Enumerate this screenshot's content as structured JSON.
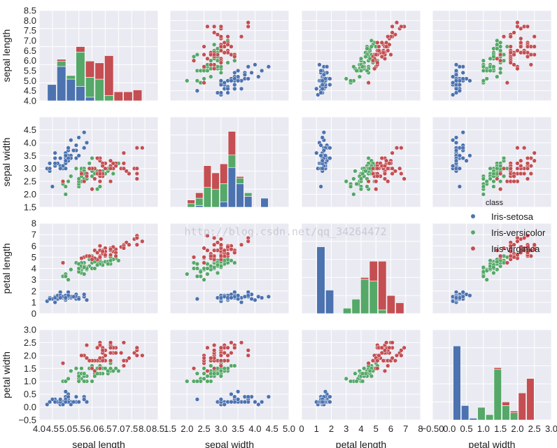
{
  "chart_data": {
    "type": "scatter",
    "layout": "pairplot",
    "variables": [
      "sepal length",
      "sepal width",
      "petal length",
      "petal width"
    ],
    "axis_labels": [
      "sepal length",
      "sepal width",
      "petal length",
      "petal width"
    ],
    "colors": {
      "Iris-setosa": "#4c72b0",
      "Iris-versicolor": "#55a868",
      "Iris-virginica": "#c44e52"
    },
    "background": "#eaeaf2",
    "grid": true,
    "legend": {
      "title": "class",
      "placement": "right",
      "entries": [
        "Iris-setosa",
        "Iris-versicolor",
        "Iris-virginica"
      ]
    },
    "watermark": "http://blog.csdn.net/qq_34264472",
    "axes": [
      {
        "lim": [
          4.0,
          8.5
        ],
        "ticks": [
          4.0,
          4.5,
          5.0,
          5.5,
          6.0,
          6.5,
          7.0,
          7.5,
          8.0,
          8.5
        ],
        "tick_labels": [
          "4.0",
          "4.5",
          "5.0",
          "5.5",
          "6.0",
          "6.5",
          "7.0",
          "7.5",
          "8.0",
          "8.5"
        ]
      },
      {
        "lim": [
          1.5,
          5.0
        ],
        "ticks": [
          1.5,
          2.0,
          2.5,
          3.0,
          3.5,
          4.0,
          4.5,
          5.0
        ],
        "tick_labels": [
          "1.5",
          "2.0",
          "2.5",
          "3.0",
          "3.5",
          "4.0",
          "4.5",
          "5.0"
        ]
      },
      {
        "lim": [
          0,
          8
        ],
        "ticks": [
          0,
          1,
          2,
          3,
          4,
          5,
          6,
          7,
          8
        ],
        "tick_labels": [
          "0",
          "1",
          "2",
          "3",
          "4",
          "5",
          "6",
          "7",
          "8"
        ]
      },
      {
        "lim": [
          -0.5,
          3.0
        ],
        "ticks": [
          -0.5,
          0.0,
          0.5,
          1.0,
          1.5,
          2.0,
          2.5,
          3.0
        ],
        "tick_labels": [
          "−0.5",
          "0.0",
          "0.5",
          "1.0",
          "1.5",
          "2.0",
          "2.5",
          "3.0"
        ]
      }
    ],
    "bottom_tick_labels": [
      [
        "4.0",
        "4.5",
        "5.0",
        "5.5",
        "6.0",
        "6.5",
        "7.0",
        "7.5",
        "8.0",
        "8.5"
      ],
      [
        "1.5",
        "2.0",
        "2.5",
        "3.0",
        "3.5",
        "4.0",
        "4.5",
        "5.0"
      ],
      [
        "0",
        "1",
        "2",
        "3",
        "4",
        "5",
        "6",
        "7",
        "8"
      ],
      [
        "−0.50",
        "0.0",
        "0.5",
        "1.0",
        "1.5",
        "2.0",
        "2.5",
        "3.0"
      ]
    ],
    "left_tick_labels": [
      [
        "4.0",
        "4.5",
        "5.0",
        "5.5",
        "6.0",
        "6.5",
        "7.0",
        "7.5",
        "8.0",
        "8.5"
      ],
      [
        "1.5",
        "2.0",
        "2.5",
        "3.0",
        "3.5",
        "4.0",
        "4.5"
      ],
      [
        "0",
        "1",
        "2",
        "3",
        "4",
        "5",
        "6",
        "7",
        "8"
      ],
      [
        "−0.5",
        "0.0",
        "0.5",
        "1.0",
        "1.5",
        "2.0",
        "2.5",
        "3.0"
      ]
    ],
    "hist_ylim": [
      0,
      50
    ],
    "histograms": [
      {
        "bins": [
          4.3,
          4.66,
          5.02,
          5.38,
          5.74,
          6.1,
          6.46,
          6.82,
          7.18,
          7.54,
          7.9
        ],
        "counts": {
          "Iris-setosa": [
            9,
            19,
            12,
            8,
            2,
            0,
            0,
            0,
            0,
            0
          ],
          "Iris-versicolor": [
            0,
            3,
            2,
            19,
            11,
            12,
            3,
            0,
            0,
            0
          ],
          "Iris-virginica": [
            0,
            1,
            0,
            3,
            9,
            9,
            22,
            5,
            5,
            6
          ]
        }
      },
      {
        "bins": [
          2.0,
          2.24,
          2.48,
          2.72,
          2.96,
          3.2,
          3.44,
          3.68,
          3.92,
          4.16,
          4.4
        ],
        "counts": {
          "Iris-setosa": [
            0,
            1,
            0,
            0,
            3,
            22,
            13,
            6,
            0,
            5
          ],
          "Iris-versicolor": [
            2,
            4,
            11,
            10,
            10,
            7,
            3,
            2,
            0,
            0
          ],
          "Iris-virginica": [
            2,
            3,
            12,
            9,
            11,
            13,
            1,
            0,
            0,
            0
          ]
        }
      },
      {
        "bins": [
          1.0,
          1.59,
          2.18,
          2.77,
          3.36,
          3.95,
          4.54,
          5.13,
          5.72,
          6.31,
          6.9
        ],
        "counts": {
          "Iris-setosa": [
            37,
            13,
            0,
            0,
            0,
            0,
            0,
            0,
            0,
            0
          ],
          "Iris-versicolor": [
            0,
            0,
            0,
            3,
            8,
            19,
            18,
            2,
            0,
            0
          ],
          "Iris-virginica": [
            0,
            0,
            0,
            0,
            0,
            1,
            11,
            27,
            10,
            6
          ]
        }
      },
      {
        "bins": [
          0.1,
          0.34,
          0.58,
          0.82,
          1.06,
          1.3,
          1.54,
          1.78,
          2.02,
          2.26,
          2.5
        ],
        "counts": {
          "Iris-setosa": [
            41,
            8,
            1,
            0,
            0,
            0,
            0,
            0,
            0,
            0
          ],
          "Iris-versicolor": [
            0,
            0,
            0,
            7,
            3,
            28,
            8,
            4,
            0,
            0
          ],
          "Iris-virginica": [
            0,
            0,
            0,
            0,
            0,
            1,
            2,
            1,
            15,
            23
          ]
        }
      }
    ],
    "samples": {
      "Iris-setosa": [
        [
          5.1,
          3.5,
          1.4,
          0.2
        ],
        [
          4.9,
          3.0,
          1.4,
          0.2
        ],
        [
          4.7,
          3.2,
          1.3,
          0.2
        ],
        [
          4.6,
          3.1,
          1.5,
          0.2
        ],
        [
          5.0,
          3.6,
          1.4,
          0.2
        ],
        [
          5.4,
          3.9,
          1.7,
          0.4
        ],
        [
          4.6,
          3.4,
          1.4,
          0.3
        ],
        [
          5.0,
          3.4,
          1.5,
          0.2
        ],
        [
          4.4,
          2.9,
          1.4,
          0.2
        ],
        [
          4.9,
          3.1,
          1.5,
          0.1
        ],
        [
          5.4,
          3.7,
          1.5,
          0.2
        ],
        [
          4.8,
          3.4,
          1.6,
          0.2
        ],
        [
          4.8,
          3.0,
          1.4,
          0.1
        ],
        [
          4.3,
          3.0,
          1.1,
          0.1
        ],
        [
          5.8,
          4.0,
          1.2,
          0.2
        ],
        [
          5.7,
          4.4,
          1.5,
          0.4
        ],
        [
          5.4,
          3.9,
          1.3,
          0.4
        ],
        [
          5.1,
          3.5,
          1.4,
          0.3
        ],
        [
          5.7,
          3.8,
          1.7,
          0.3
        ],
        [
          5.1,
          3.8,
          1.5,
          0.3
        ],
        [
          5.4,
          3.4,
          1.7,
          0.2
        ],
        [
          5.1,
          3.7,
          1.5,
          0.4
        ],
        [
          4.6,
          3.6,
          1.0,
          0.2
        ],
        [
          5.1,
          3.3,
          1.7,
          0.5
        ],
        [
          4.8,
          3.4,
          1.9,
          0.2
        ],
        [
          5.0,
          3.0,
          1.6,
          0.2
        ],
        [
          5.0,
          3.4,
          1.6,
          0.4
        ],
        [
          5.2,
          3.5,
          1.5,
          0.2
        ],
        [
          5.2,
          3.4,
          1.4,
          0.2
        ],
        [
          4.7,
          3.2,
          1.6,
          0.2
        ],
        [
          4.8,
          3.1,
          1.6,
          0.2
        ],
        [
          5.4,
          3.4,
          1.5,
          0.4
        ],
        [
          5.2,
          4.1,
          1.5,
          0.1
        ],
        [
          5.5,
          4.2,
          1.4,
          0.2
        ],
        [
          4.9,
          3.1,
          1.5,
          0.1
        ],
        [
          5.0,
          3.2,
          1.2,
          0.2
        ],
        [
          5.5,
          3.5,
          1.3,
          0.2
        ],
        [
          4.9,
          3.1,
          1.5,
          0.1
        ],
        [
          4.4,
          3.0,
          1.3,
          0.2
        ],
        [
          5.1,
          3.4,
          1.5,
          0.2
        ],
        [
          5.0,
          3.5,
          1.3,
          0.3
        ],
        [
          4.5,
          2.3,
          1.3,
          0.3
        ],
        [
          4.4,
          3.2,
          1.3,
          0.2
        ],
        [
          5.0,
          3.5,
          1.6,
          0.6
        ],
        [
          5.1,
          3.8,
          1.9,
          0.4
        ],
        [
          4.8,
          3.0,
          1.4,
          0.3
        ],
        [
          5.1,
          3.8,
          1.6,
          0.2
        ],
        [
          4.6,
          3.2,
          1.4,
          0.2
        ],
        [
          5.3,
          3.7,
          1.5,
          0.2
        ],
        [
          5.0,
          3.3,
          1.4,
          0.2
        ]
      ],
      "Iris-versicolor": [
        [
          7.0,
          3.2,
          4.7,
          1.4
        ],
        [
          6.4,
          3.2,
          4.5,
          1.5
        ],
        [
          6.9,
          3.1,
          4.9,
          1.5
        ],
        [
          5.5,
          2.3,
          4.0,
          1.3
        ],
        [
          6.5,
          2.8,
          4.6,
          1.5
        ],
        [
          5.7,
          2.8,
          4.5,
          1.3
        ],
        [
          6.3,
          3.3,
          4.7,
          1.6
        ],
        [
          4.9,
          2.4,
          3.3,
          1.0
        ],
        [
          6.6,
          2.9,
          4.6,
          1.3
        ],
        [
          5.2,
          2.7,
          3.9,
          1.4
        ],
        [
          5.0,
          2.0,
          3.5,
          1.0
        ],
        [
          5.9,
          3.0,
          4.2,
          1.5
        ],
        [
          6.0,
          2.2,
          4.0,
          1.0
        ],
        [
          6.1,
          2.9,
          4.7,
          1.4
        ],
        [
          5.6,
          2.9,
          3.6,
          1.3
        ],
        [
          6.7,
          3.1,
          4.4,
          1.4
        ],
        [
          5.6,
          3.0,
          4.5,
          1.5
        ],
        [
          5.8,
          2.7,
          4.1,
          1.0
        ],
        [
          6.2,
          2.2,
          4.5,
          1.5
        ],
        [
          5.6,
          2.5,
          3.9,
          1.1
        ],
        [
          5.9,
          3.2,
          4.8,
          1.8
        ],
        [
          6.1,
          2.8,
          4.0,
          1.3
        ],
        [
          6.3,
          2.5,
          4.9,
          1.5
        ],
        [
          6.1,
          2.8,
          4.7,
          1.2
        ],
        [
          6.4,
          2.9,
          4.3,
          1.3
        ],
        [
          6.6,
          3.0,
          4.4,
          1.4
        ],
        [
          6.8,
          2.8,
          4.8,
          1.4
        ],
        [
          6.7,
          3.0,
          5.0,
          1.7
        ],
        [
          6.0,
          2.9,
          4.5,
          1.5
        ],
        [
          5.7,
          2.6,
          3.5,
          1.0
        ],
        [
          5.5,
          2.4,
          3.8,
          1.1
        ],
        [
          5.5,
          2.4,
          3.7,
          1.0
        ],
        [
          5.8,
          2.7,
          3.9,
          1.2
        ],
        [
          6.0,
          2.7,
          5.1,
          1.6
        ],
        [
          5.4,
          3.0,
          4.5,
          1.5
        ],
        [
          6.0,
          3.4,
          4.5,
          1.6
        ],
        [
          6.7,
          3.1,
          4.7,
          1.5
        ],
        [
          6.3,
          2.3,
          4.4,
          1.3
        ],
        [
          5.6,
          3.0,
          4.1,
          1.3
        ],
        [
          5.5,
          2.5,
          4.0,
          1.3
        ],
        [
          5.5,
          2.6,
          4.4,
          1.2
        ],
        [
          6.1,
          3.0,
          4.6,
          1.4
        ],
        [
          5.8,
          2.6,
          4.0,
          1.2
        ],
        [
          5.0,
          2.3,
          3.3,
          1.0
        ],
        [
          5.6,
          2.7,
          4.2,
          1.3
        ],
        [
          5.7,
          3.0,
          4.2,
          1.2
        ],
        [
          5.7,
          2.9,
          4.2,
          1.3
        ],
        [
          6.2,
          2.9,
          4.3,
          1.3
        ],
        [
          5.1,
          2.5,
          3.0,
          1.1
        ],
        [
          5.7,
          2.8,
          4.1,
          1.3
        ]
      ],
      "Iris-virginica": [
        [
          6.3,
          3.3,
          6.0,
          2.5
        ],
        [
          5.8,
          2.7,
          5.1,
          1.9
        ],
        [
          7.1,
          3.0,
          5.9,
          2.1
        ],
        [
          6.3,
          2.9,
          5.6,
          1.8
        ],
        [
          6.5,
          3.0,
          5.8,
          2.2
        ],
        [
          7.6,
          3.0,
          6.6,
          2.1
        ],
        [
          4.9,
          2.5,
          4.5,
          1.7
        ],
        [
          7.3,
          2.9,
          6.3,
          1.8
        ],
        [
          6.7,
          2.5,
          5.8,
          1.8
        ],
        [
          7.2,
          3.6,
          6.1,
          2.5
        ],
        [
          6.5,
          3.2,
          5.1,
          2.0
        ],
        [
          6.4,
          2.7,
          5.3,
          1.9
        ],
        [
          6.8,
          3.0,
          5.5,
          2.1
        ],
        [
          5.7,
          2.5,
          5.0,
          2.0
        ],
        [
          5.8,
          2.8,
          5.1,
          2.4
        ],
        [
          6.4,
          3.2,
          5.3,
          2.3
        ],
        [
          6.5,
          3.0,
          5.5,
          1.8
        ],
        [
          7.7,
          3.8,
          6.7,
          2.2
        ],
        [
          7.7,
          2.6,
          6.9,
          2.3
        ],
        [
          6.0,
          2.2,
          5.0,
          1.5
        ],
        [
          6.9,
          3.2,
          5.7,
          2.3
        ],
        [
          5.6,
          2.8,
          4.9,
          2.0
        ],
        [
          7.7,
          2.8,
          6.7,
          2.0
        ],
        [
          6.3,
          2.7,
          4.9,
          1.8
        ],
        [
          6.7,
          3.3,
          5.7,
          2.1
        ],
        [
          7.2,
          3.2,
          6.0,
          1.8
        ],
        [
          6.2,
          2.8,
          4.8,
          1.8
        ],
        [
          6.1,
          3.0,
          4.9,
          1.8
        ],
        [
          6.4,
          2.8,
          5.6,
          2.1
        ],
        [
          7.2,
          3.0,
          5.8,
          1.6
        ],
        [
          7.4,
          2.8,
          6.1,
          1.9
        ],
        [
          7.9,
          3.8,
          6.4,
          2.0
        ],
        [
          6.4,
          2.8,
          5.6,
          2.2
        ],
        [
          6.3,
          2.8,
          5.1,
          1.5
        ],
        [
          6.1,
          2.6,
          5.6,
          1.4
        ],
        [
          7.7,
          3.0,
          6.1,
          2.3
        ],
        [
          6.3,
          3.4,
          5.6,
          2.4
        ],
        [
          6.4,
          3.1,
          5.5,
          1.8
        ],
        [
          6.0,
          3.0,
          4.8,
          1.8
        ],
        [
          6.9,
          3.1,
          5.4,
          2.1
        ],
        [
          6.7,
          3.1,
          5.6,
          2.4
        ],
        [
          6.9,
          3.1,
          5.1,
          2.3
        ],
        [
          5.8,
          2.7,
          5.1,
          1.9
        ],
        [
          6.8,
          3.2,
          5.9,
          2.3
        ],
        [
          6.7,
          3.3,
          5.7,
          2.5
        ],
        [
          6.7,
          3.0,
          5.2,
          2.3
        ],
        [
          6.3,
          2.5,
          5.0,
          1.9
        ],
        [
          6.5,
          3.0,
          5.2,
          2.0
        ],
        [
          6.2,
          3.4,
          5.4,
          2.3
        ],
        [
          5.9,
          3.0,
          5.1,
          1.8
        ]
      ]
    }
  }
}
